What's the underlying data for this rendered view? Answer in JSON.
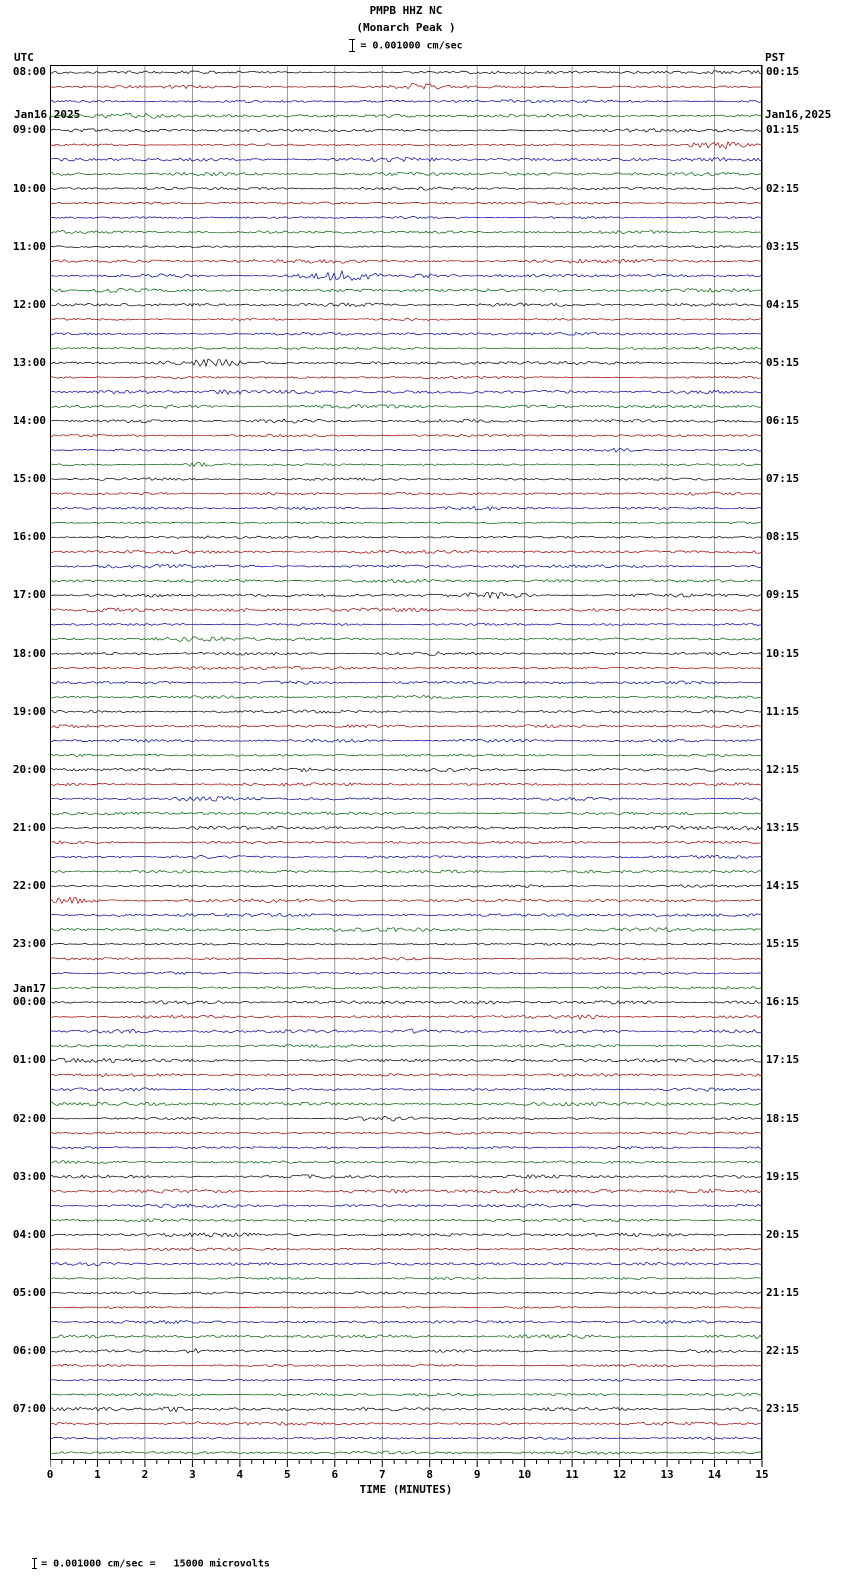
{
  "title": {
    "line1": "PMPB HHZ NC",
    "line2": "(Monarch Peak )"
  },
  "scale": {
    "text": "= 0.001000 cm/sec"
  },
  "header_left": {
    "timezone": "UTC",
    "date": "Jan16,2025"
  },
  "header_right": {
    "timezone": "PST",
    "date": "Jan16,2025"
  },
  "x_axis": {
    "label": "TIME (MINUTES)",
    "ticks": [
      "0",
      "1",
      "2",
      "3",
      "4",
      "5",
      "6",
      "7",
      "8",
      "9",
      "10",
      "11",
      "12",
      "13",
      "14",
      "15"
    ]
  },
  "footer": {
    "text": "= 0.001000 cm/sec =   15000 microvolts"
  },
  "left_labels": [
    {
      "row": 0,
      "text": "08:00"
    },
    {
      "row": 4,
      "text": "09:00"
    },
    {
      "row": 8,
      "text": "10:00"
    },
    {
      "row": 12,
      "text": "11:00"
    },
    {
      "row": 16,
      "text": "12:00"
    },
    {
      "row": 20,
      "text": "13:00"
    },
    {
      "row": 24,
      "text": "14:00"
    },
    {
      "row": 28,
      "text": "15:00"
    },
    {
      "row": 32,
      "text": "16:00"
    },
    {
      "row": 36,
      "text": "17:00"
    },
    {
      "row": 40,
      "text": "18:00"
    },
    {
      "row": 44,
      "text": "19:00"
    },
    {
      "row": 48,
      "text": "20:00"
    },
    {
      "row": 52,
      "text": "21:00"
    },
    {
      "row": 56,
      "text": "22:00"
    },
    {
      "row": 60,
      "text": "23:00"
    },
    {
      "row": 64,
      "text": "00:00",
      "pre": "Jan17"
    },
    {
      "row": 68,
      "text": "01:00"
    },
    {
      "row": 72,
      "text": "02:00"
    },
    {
      "row": 76,
      "text": "03:00"
    },
    {
      "row": 80,
      "text": "04:00"
    },
    {
      "row": 84,
      "text": "05:00"
    },
    {
      "row": 88,
      "text": "06:00"
    },
    {
      "row": 92,
      "text": "07:00"
    }
  ],
  "right_labels": [
    {
      "row": 0,
      "text": "00:15"
    },
    {
      "row": 4,
      "text": "01:15"
    },
    {
      "row": 8,
      "text": "02:15"
    },
    {
      "row": 12,
      "text": "03:15"
    },
    {
      "row": 16,
      "text": "04:15"
    },
    {
      "row": 20,
      "text": "05:15"
    },
    {
      "row": 24,
      "text": "06:15"
    },
    {
      "row": 28,
      "text": "07:15"
    },
    {
      "row": 32,
      "text": "08:15"
    },
    {
      "row": 36,
      "text": "09:15"
    },
    {
      "row": 40,
      "text": "10:15"
    },
    {
      "row": 44,
      "text": "11:15"
    },
    {
      "row": 48,
      "text": "12:15"
    },
    {
      "row": 52,
      "text": "13:15"
    },
    {
      "row": 56,
      "text": "14:15"
    },
    {
      "row": 60,
      "text": "15:15"
    },
    {
      "row": 64,
      "text": "16:15"
    },
    {
      "row": 68,
      "text": "17:15"
    },
    {
      "row": 72,
      "text": "18:15"
    },
    {
      "row": 76,
      "text": "19:15"
    },
    {
      "row": 80,
      "text": "20:15"
    },
    {
      "row": 84,
      "text": "21:15"
    },
    {
      "row": 88,
      "text": "22:15"
    },
    {
      "row": 92,
      "text": "23:15"
    }
  ],
  "chart_data": {
    "type": "line",
    "subtype": "seismogram-helicorder",
    "station": "PMPB",
    "channel": "HHZ",
    "network": "NC",
    "station_name": "Monarch Peak",
    "utc_start": "Jan16,2025 08:00",
    "utc_end": "Jan17,2025 08:00",
    "local_timezone": "PST",
    "minutes_per_line": 15,
    "lines_total": 96,
    "lines_per_hour": 4,
    "x_range_minutes": [
      0,
      15
    ],
    "trace_colors": [
      "#000000",
      "#a00000",
      "#0000a0",
      "#006000"
    ],
    "grid_color": "#808080",
    "amplitude_scale": "0.001000 cm/sec",
    "microvolts_equivalent": "15000 microvolts",
    "grid": "vertical gridlines at every minute",
    "content": "continuous low-amplitude ambient background noise on all 96 traces; no large seismic events visible"
  }
}
